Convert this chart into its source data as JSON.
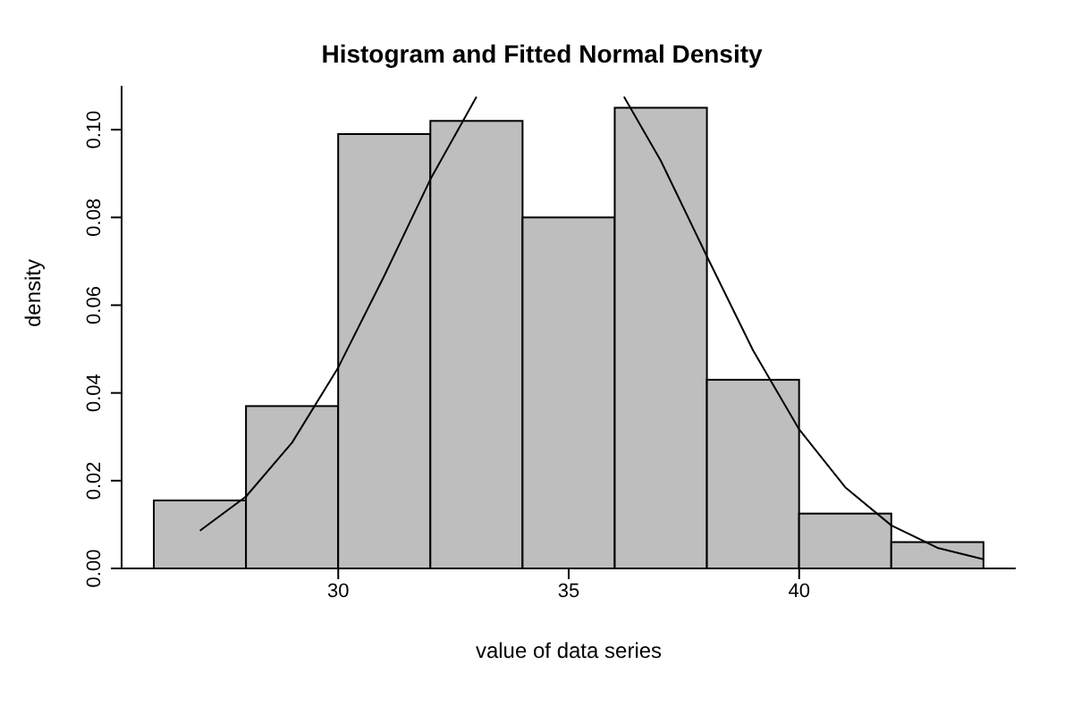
{
  "chart_data": {
    "type": "histogram",
    "title": "Histogram and Fitted Normal Density",
    "xlabel": "value of data series",
    "ylabel": "density",
    "bins": [
      26,
      28,
      30,
      32,
      34,
      36,
      38,
      40,
      42,
      44
    ],
    "values": [
      0.0155,
      0.037,
      0.099,
      0.102,
      0.08,
      0.105,
      0.043,
      0.0125,
      0.006
    ],
    "color": "#bebebe",
    "series": [
      {
        "type": "line",
        "color": "#000000",
        "x": [
          27,
          28,
          29,
          30,
          31,
          32,
          33,
          34,
          35,
          36.2,
          37,
          38,
          39,
          40,
          41,
          42,
          43,
          44
        ],
        "values": [
          0.0086,
          0.0164,
          0.0287,
          0.0458,
          0.0667,
          0.0887,
          0.1075,
          null,
          null,
          0.1075,
          0.0929,
          0.0711,
          0.0497,
          0.0317,
          0.0185,
          0.0098,
          0.0047,
          0.0021
        ]
      }
    ],
    "xlim": [
      25.3,
      44.7
    ],
    "xticks": [
      30,
      35,
      40
    ],
    "ylim": [
      0,
      0.11
    ],
    "yticks": [
      {
        "value": 0,
        "label": "0.00"
      },
      {
        "value": 0.02,
        "label": "0.02"
      },
      {
        "value": 0.04,
        "label": "0.04"
      },
      {
        "value": 0.06,
        "label": "0.06"
      },
      {
        "value": 0.08,
        "label": "0.08"
      },
      {
        "value": 0.1,
        "label": "0.10"
      }
    ],
    "grid": false
  }
}
